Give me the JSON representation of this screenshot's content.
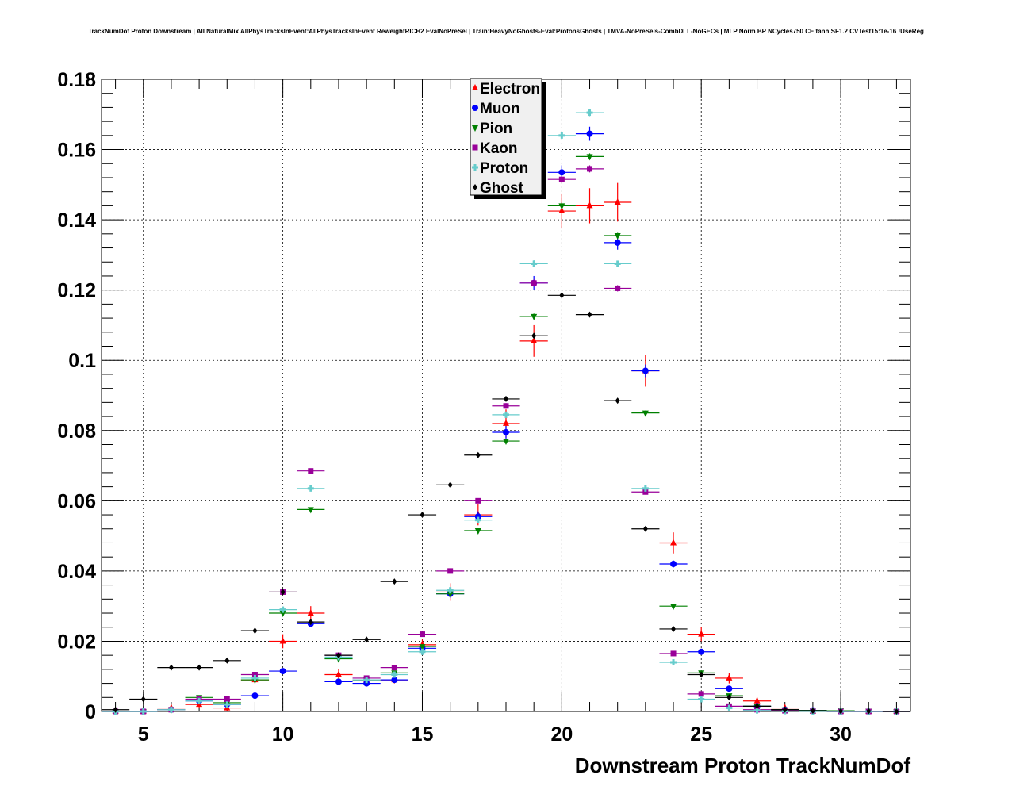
{
  "chart_data": {
    "type": "scatter",
    "title": "TrackNumDof Proton Downstream | All NaturalMix AllPhysTracksInEvent:AllPhysTracksInEvent ReweightRICH2 EvalNoPreSel | Train:HeavyNoGhosts-Eval:ProtonsGhosts | TMVA-NoPreSels-CombDLL-NoGECs | MLP Norm BP NCycles750 CE tanh SF1.2 CVTest15:1e-16 !UseReg",
    "xlabel": "Downstream Proton TrackNumDof",
    "ylabel": "",
    "xlim": [
      3.5,
      32.5
    ],
    "ylim": [
      0,
      0.18
    ],
    "x_ticks": [
      5,
      10,
      15,
      20,
      25,
      30
    ],
    "x_tick_labels": [
      "5",
      "10",
      "15",
      "20",
      "25",
      "30"
    ],
    "y_ticks": [
      0,
      0.02,
      0.04,
      0.06,
      0.08,
      0.1,
      0.12,
      0.14,
      0.16,
      0.18
    ],
    "y_tick_labels": [
      "0",
      "0.02",
      "0.04",
      "0.06",
      "0.08",
      "0.1",
      "0.12",
      "0.14",
      "0.16",
      "0.18"
    ],
    "grid": true,
    "legend_position": "top-center",
    "x": [
      4,
      5,
      6,
      7,
      8,
      9,
      10,
      11,
      12,
      13,
      14,
      15,
      16,
      17,
      18,
      19,
      20,
      21,
      22,
      23,
      24,
      25,
      26,
      27,
      28,
      29,
      30,
      31,
      32
    ],
    "series": [
      {
        "name": "Electron",
        "color": "#ff0000",
        "marker": "triangle-up",
        "values": [
          0.0,
          0.0,
          0.001,
          0.002,
          0.001,
          0.009,
          0.02,
          0.028,
          0.0105,
          0.009,
          0.009,
          0.019,
          0.034,
          0.056,
          0.082,
          0.1055,
          0.1425,
          0.144,
          0.145,
          0.097,
          0.048,
          0.022,
          0.0095,
          0.003,
          0.001,
          0.0,
          0.0,
          0.0,
          0.0
        ],
        "errors": [
          0.0,
          0.0,
          0.0005,
          0.001,
          0.0008,
          0.001,
          0.002,
          0.002,
          0.0015,
          0.001,
          0.001,
          0.0015,
          0.0025,
          0.003,
          0.004,
          0.0045,
          0.005,
          0.005,
          0.0055,
          0.0045,
          0.003,
          0.002,
          0.0015,
          0.001,
          0.0008,
          0.0,
          0.0,
          0.0,
          0.0
        ]
      },
      {
        "name": "Muon",
        "color": "#0000ff",
        "marker": "circle",
        "values": [
          0.0,
          0.0,
          0.0005,
          0.003,
          0.002,
          0.0045,
          0.0115,
          0.025,
          0.0085,
          0.008,
          0.009,
          0.018,
          0.0335,
          0.0555,
          0.0795,
          0.122,
          0.1535,
          0.1645,
          0.1335,
          0.097,
          0.042,
          0.017,
          0.0065,
          0.0015,
          0.0005,
          0.0003,
          0.0,
          0.0,
          0.0
        ],
        "errors": [
          0.0,
          0.0,
          0.0003,
          0.0005,
          0.0005,
          0.0005,
          0.0008,
          0.001,
          0.0006,
          0.0006,
          0.0006,
          0.001,
          0.0012,
          0.0015,
          0.0018,
          0.002,
          0.002,
          0.002,
          0.002,
          0.0018,
          0.001,
          0.0008,
          0.0005,
          0.0003,
          0.0002,
          0.0002,
          0.0,
          0.0,
          0.0
        ]
      },
      {
        "name": "Pion",
        "color": "#008000",
        "marker": "triangle-down",
        "values": [
          0.0,
          0.0,
          0.0005,
          0.004,
          0.0025,
          0.009,
          0.028,
          0.0575,
          0.015,
          0.009,
          0.011,
          0.0185,
          0.0335,
          0.0515,
          0.077,
          0.1125,
          0.144,
          0.158,
          0.1355,
          0.085,
          0.03,
          0.011,
          0.0045,
          0.0015,
          0.0005,
          0.0003,
          0.0002,
          0.0001,
          0.0
        ],
        "errors": [
          0.0,
          0.0,
          0.0002,
          0.0003,
          0.0003,
          0.0003,
          0.0004,
          0.0005,
          0.0003,
          0.0003,
          0.0003,
          0.0004,
          0.0005,
          0.0006,
          0.0007,
          0.0008,
          0.0009,
          0.0009,
          0.0008,
          0.0007,
          0.0004,
          0.0003,
          0.0002,
          0.0001,
          0.0001,
          0.0001,
          0.0001,
          0.0001,
          0.0
        ]
      },
      {
        "name": "Kaon",
        "color": "#990099",
        "marker": "square",
        "values": [
          0.0,
          0.0,
          0.0005,
          0.0035,
          0.0035,
          0.0105,
          0.034,
          0.0685,
          0.016,
          0.0095,
          0.0125,
          0.022,
          0.04,
          0.06,
          0.087,
          0.122,
          0.1515,
          0.1545,
          0.1205,
          0.0625,
          0.0165,
          0.005,
          0.0015,
          0.0005,
          0.0002,
          0.0001,
          0.0,
          0.0,
          0.0
        ],
        "errors": [
          0.0,
          0.0,
          0.0002,
          0.0003,
          0.0003,
          0.0004,
          0.0005,
          0.0007,
          0.0003,
          0.0003,
          0.0003,
          0.0004,
          0.0005,
          0.0007,
          0.0008,
          0.001,
          0.001,
          0.001,
          0.0009,
          0.0007,
          0.0004,
          0.0002,
          0.0001,
          0.0001,
          0.0001,
          0.0,
          0.0,
          0.0,
          0.0
        ]
      },
      {
        "name": "Proton",
        "color": "#66cccc",
        "marker": "cross",
        "values": [
          0.0,
          0.0,
          0.0005,
          0.003,
          0.002,
          0.0095,
          0.029,
          0.0635,
          0.0155,
          0.009,
          0.0105,
          0.017,
          0.0345,
          0.0545,
          0.0845,
          0.1275,
          0.164,
          0.1705,
          0.1275,
          0.0635,
          0.014,
          0.0035,
          0.001,
          0.0003,
          0.0001,
          0.0,
          0.0,
          0.0,
          0.0
        ],
        "errors": [
          0.0,
          0.0,
          0.0002,
          0.0003,
          0.0003,
          0.0004,
          0.0005,
          0.0007,
          0.0003,
          0.0003,
          0.0003,
          0.0004,
          0.0005,
          0.0007,
          0.0008,
          0.001,
          0.001,
          0.001,
          0.0009,
          0.0007,
          0.0004,
          0.0002,
          0.0001,
          0.0001,
          0.0001,
          0.0,
          0.0,
          0.0,
          0.0
        ]
      },
      {
        "name": "Ghost",
        "color": "#000000",
        "marker": "diamond",
        "values": [
          0.0005,
          0.0035,
          0.0125,
          0.0125,
          0.0145,
          0.023,
          0.034,
          0.0255,
          0.016,
          0.0205,
          0.037,
          0.056,
          0.0645,
          0.073,
          0.089,
          0.107,
          0.1185,
          0.113,
          0.0885,
          0.052,
          0.0235,
          0.0105,
          0.004,
          0.0015,
          0.0005,
          0.0002,
          0.0001,
          0.0001,
          0.0
        ],
        "errors": [
          0.0002,
          0.0003,
          0.0004,
          0.0004,
          0.0004,
          0.0005,
          0.0005,
          0.0005,
          0.0004,
          0.0004,
          0.0005,
          0.0006,
          0.0006,
          0.0006,
          0.0007,
          0.0007,
          0.0007,
          0.0007,
          0.0007,
          0.0005,
          0.0004,
          0.0003,
          0.0002,
          0.0001,
          0.0001,
          0.0,
          0.0,
          0.0,
          0.0
        ]
      }
    ]
  }
}
